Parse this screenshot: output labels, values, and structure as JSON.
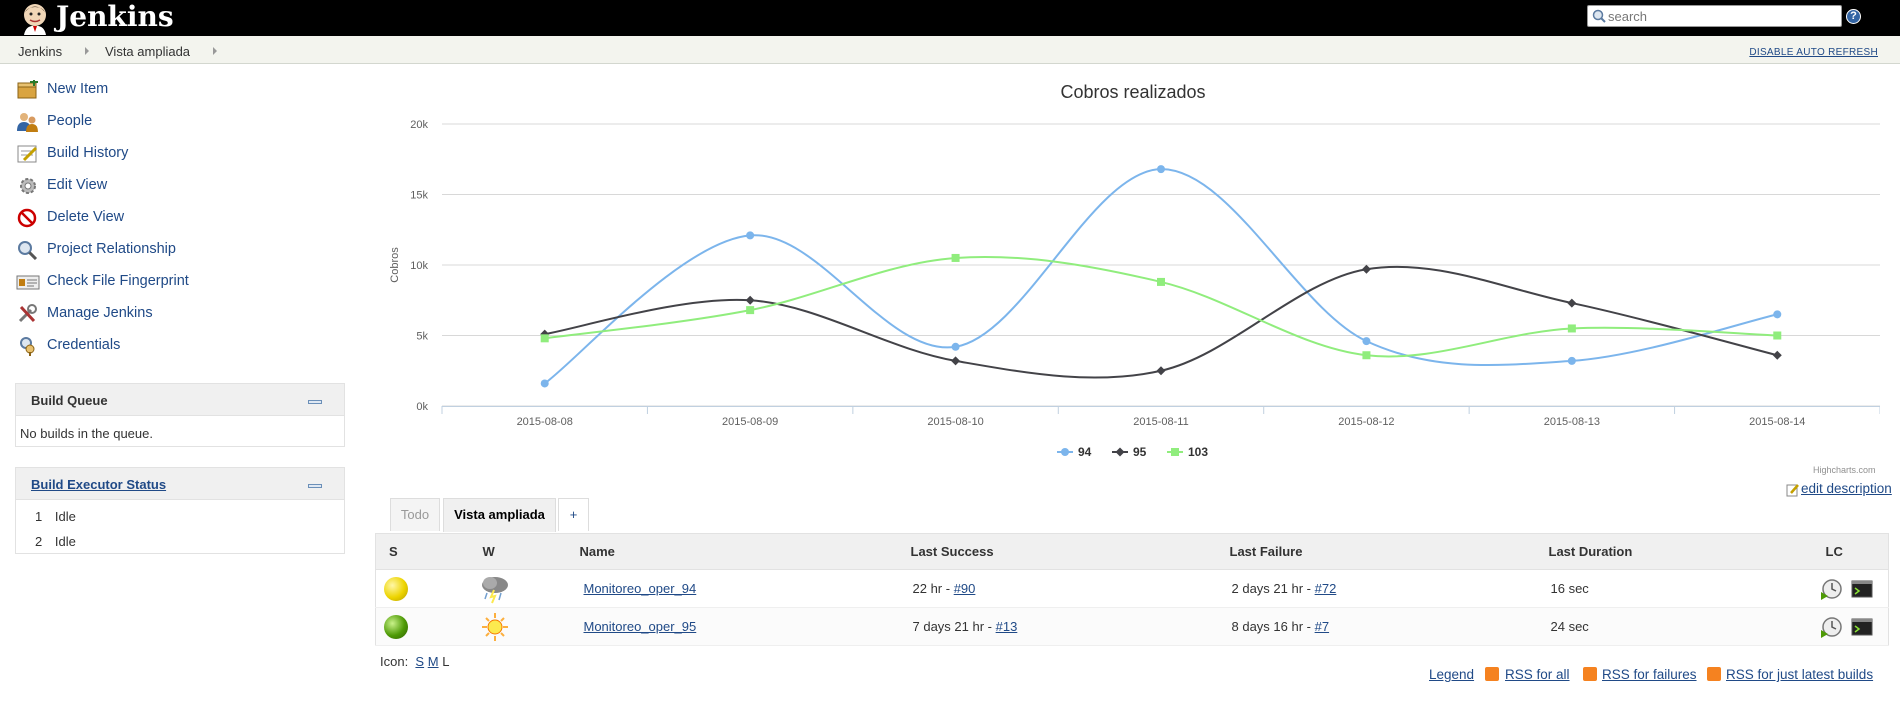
{
  "header": {
    "app_name": "Jenkins",
    "search_placeholder": "search",
    "help_label": "?"
  },
  "breadcrumb": {
    "items": [
      {
        "label": "Jenkins"
      },
      {
        "label": "Vista ampliada"
      }
    ],
    "disable_refresh_label": "DISABLE AUTO REFRESH"
  },
  "sidebar": {
    "tasks": [
      {
        "label": "New Item",
        "icon": "new-item-icon"
      },
      {
        "label": "People",
        "icon": "people-icon"
      },
      {
        "label": "Build History",
        "icon": "build-history-icon"
      },
      {
        "label": "Edit View",
        "icon": "gear-icon"
      },
      {
        "label": "Delete View",
        "icon": "no-entry-icon"
      },
      {
        "label": "Project Relationship",
        "icon": "magnifier-icon"
      },
      {
        "label": "Check File Fingerprint",
        "icon": "fingerprint-icon"
      },
      {
        "label": "Manage Jenkins",
        "icon": "tools-icon"
      },
      {
        "label": "Credentials",
        "icon": "credentials-icon"
      }
    ],
    "build_queue": {
      "title": "Build Queue",
      "empty_text": "No builds in the queue."
    },
    "executors": {
      "title": "Build Executor Status",
      "rows": [
        {
          "num": "1",
          "status": "Idle"
        },
        {
          "num": "2",
          "status": "Idle"
        }
      ]
    }
  },
  "chart_data": {
    "type": "line",
    "title": "Cobros realizados",
    "xlabel": "",
    "ylabel": "Cobros",
    "categories": [
      "2015-08-08",
      "2015-08-09",
      "2015-08-10",
      "2015-08-11",
      "2015-08-12",
      "2015-08-13",
      "2015-08-14"
    ],
    "ylim": [
      0,
      20000
    ],
    "yticks": [
      0,
      5000,
      10000,
      15000,
      20000
    ],
    "ytick_labels": [
      "0k",
      "5k",
      "10k",
      "15k",
      "20k"
    ],
    "grid": true,
    "legend": "bottom-center",
    "credits": "Highcharts.com",
    "series": [
      {
        "name": "94",
        "color": "#7cb5ec",
        "marker": "circle",
        "values": [
          1600,
          12100,
          4200,
          16800,
          4600,
          3200,
          6500
        ]
      },
      {
        "name": "95",
        "color": "#434348",
        "marker": "diamond",
        "values": [
          5100,
          7500,
          3200,
          2500,
          9700,
          7300,
          3600
        ]
      },
      {
        "name": "103",
        "color": "#90ed7d",
        "marker": "square",
        "values": [
          4800,
          6800,
          10500,
          8800,
          3600,
          5500,
          5000
        ]
      }
    ]
  },
  "edit_description_label": "edit description",
  "tabs": [
    {
      "label": "Todo",
      "active": false
    },
    {
      "label": "Vista ampliada",
      "active": true
    },
    {
      "label": "+",
      "active": false
    }
  ],
  "table": {
    "headers": [
      "S",
      "W",
      "Name",
      "Last Success",
      "Last Failure",
      "Last Duration",
      "LC"
    ],
    "rows": [
      {
        "status_color": "#edd400",
        "weather": "thunderstorm-icon",
        "name": "Monitoreo_oper_94",
        "success_time": "22 hr - ",
        "success_build": "#90",
        "failure_time": "2 days 21 hr - ",
        "failure_build": "#72",
        "duration": "16 sec"
      },
      {
        "status_color": "#4e9a06",
        "weather": "sunny-icon",
        "name": "Monitoreo_oper_95",
        "success_time": "7 days 21 hr - ",
        "success_build": "#13",
        "failure_time": "8 days 16 hr - ",
        "failure_build": "#7",
        "duration": "24 sec"
      }
    ]
  },
  "icon_size": {
    "label": "Icon:",
    "sizes": [
      "S",
      "M",
      "L"
    ]
  },
  "footer": {
    "legend": "Legend",
    "rss_all": "RSS for all",
    "rss_failures": "RSS for failures",
    "rss_latest": "RSS for just latest builds"
  }
}
